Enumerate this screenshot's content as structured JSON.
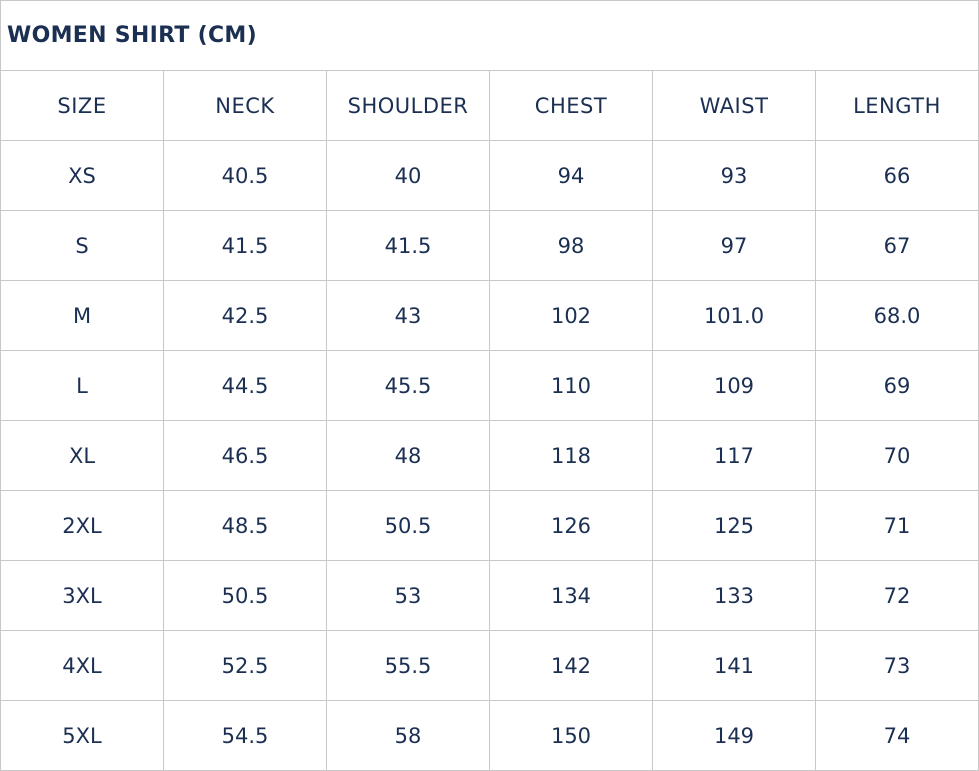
{
  "title": "WOMEN SHIRT (CM)",
  "colors": {
    "text": "#1b2f52",
    "border": "#c8c8c8"
  },
  "headers": [
    "SIZE",
    "NECK",
    "SHOULDER",
    "CHEST",
    "WAIST",
    "LENGTH"
  ],
  "rows": [
    [
      "XS",
      "40.5",
      "40",
      "94",
      "93",
      "66"
    ],
    [
      "S",
      "41.5",
      "41.5",
      "98",
      "97",
      "67"
    ],
    [
      "M",
      "42.5",
      "43",
      "102",
      "101.0",
      "68.0"
    ],
    [
      "L",
      "44.5",
      "45.5",
      "110",
      "109",
      "69"
    ],
    [
      "XL",
      "46.5",
      "48",
      "118",
      "117",
      "70"
    ],
    [
      "2XL",
      "48.5",
      "50.5",
      "126",
      "125",
      "71"
    ],
    [
      "3XL",
      "50.5",
      "53",
      "134",
      "133",
      "72"
    ],
    [
      "4XL",
      "52.5",
      "55.5",
      "142",
      "141",
      "73"
    ],
    [
      "5XL",
      "54.5",
      "58",
      "150",
      "149",
      "74"
    ]
  ]
}
